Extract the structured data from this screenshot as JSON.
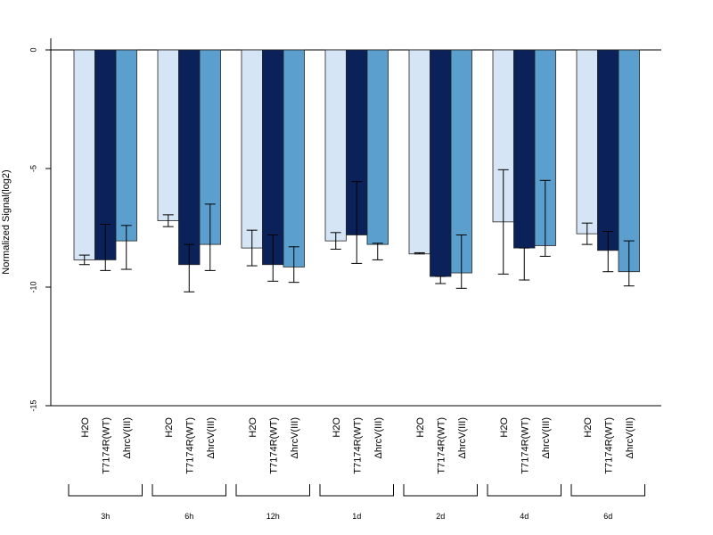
{
  "chart_data": {
    "type": "bar",
    "ylabel": "Normalized Signal(log2)",
    "ylim": [
      -15,
      0.5
    ],
    "yticks": [
      0,
      -5,
      -10,
      -15
    ],
    "ytick_labels": [
      "0",
      "-5",
      "-10",
      "-15"
    ],
    "groups": [
      "3h",
      "6h",
      "12h",
      "1d",
      "2d",
      "4d",
      "6d"
    ],
    "bar_labels": [
      "H2O",
      "T7174R(WT)",
      "ΔhrcV(III)"
    ],
    "series": [
      {
        "color": "#d6e5f5",
        "values": [
          -8.85,
          -7.2,
          -8.35,
          -8.05,
          -8.6,
          -7.25,
          -7.75
        ],
        "err_low": [
          -9.05,
          -7.45,
          -9.1,
          -8.4,
          -8.6,
          -9.45,
          -8.2
        ],
        "err_high": [
          -8.65,
          -6.95,
          -7.6,
          -7.7,
          -8.55,
          -5.05,
          -7.3
        ]
      },
      {
        "color": "#0a2259",
        "values": [
          -8.85,
          -9.05,
          -9.05,
          -7.8,
          -9.55,
          -8.35,
          -8.45
        ],
        "err_low": [
          -9.3,
          -10.2,
          -9.75,
          -9.0,
          -9.85,
          -9.7,
          -9.35
        ],
        "err_high": [
          -7.35,
          -8.2,
          -7.8,
          -5.55,
          -9.55,
          -8.35,
          -7.65
        ]
      },
      {
        "color": "#5a9fce",
        "values": [
          -8.05,
          -8.2,
          -9.15,
          -8.2,
          -9.4,
          -8.25,
          -9.35
        ],
        "err_low": [
          -9.25,
          -9.3,
          -9.8,
          -8.85,
          -10.05,
          -8.7,
          -9.95
        ],
        "err_high": [
          -7.4,
          -6.5,
          -8.3,
          -8.15,
          -7.8,
          -5.5,
          -8.05
        ]
      }
    ]
  }
}
